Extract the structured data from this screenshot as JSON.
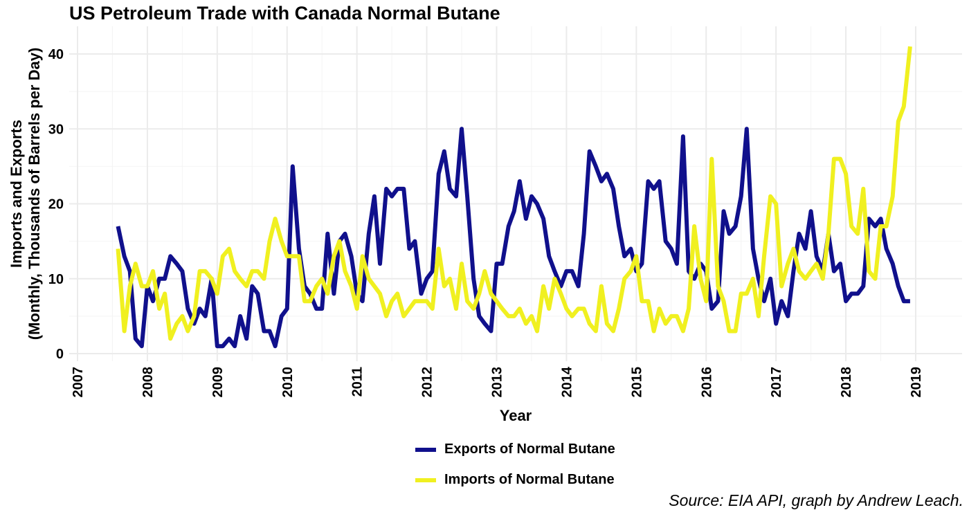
{
  "chart_data": {
    "type": "line",
    "title": "US Petroleum Trade with Canada Normal Butane",
    "xlabel": "Year",
    "ylabel_line1": "Imports and Exports",
    "ylabel_line2": "(Monthly, Thousands of Barrels per Day)",
    "xlim": [
      2007,
      2019.4
    ],
    "ylim": [
      0,
      42
    ],
    "x_ticks": [
      "2007",
      "2008",
      "2009",
      "2010",
      "2011",
      "2012",
      "2013",
      "2014",
      "2015",
      "2016",
      "2017",
      "2018",
      "2019"
    ],
    "y_ticks": [
      "0",
      "10",
      "20",
      "30",
      "40"
    ],
    "y_tick_values": [
      0,
      10,
      20,
      30,
      40
    ],
    "grid": true,
    "legend_position": "bottom",
    "series": [
      {
        "name": "Exports of Normal Butane",
        "color": "#10108c",
        "points": [
          [
            2007.58,
            17
          ],
          [
            2007.67,
            13
          ],
          [
            2007.75,
            11
          ],
          [
            2007.83,
            2
          ],
          [
            2007.92,
            1
          ],
          [
            2008.0,
            9
          ],
          [
            2008.08,
            7
          ],
          [
            2008.17,
            10
          ],
          [
            2008.25,
            10
          ],
          [
            2008.33,
            13
          ],
          [
            2008.42,
            12
          ],
          [
            2008.5,
            11
          ],
          [
            2008.58,
            6
          ],
          [
            2008.67,
            4
          ],
          [
            2008.75,
            6
          ],
          [
            2008.83,
            5
          ],
          [
            2008.92,
            10
          ],
          [
            2009.0,
            1
          ],
          [
            2009.08,
            1
          ],
          [
            2009.17,
            2
          ],
          [
            2009.25,
            1
          ],
          [
            2009.33,
            5
          ],
          [
            2009.42,
            2
          ],
          [
            2009.5,
            9
          ],
          [
            2009.58,
            8
          ],
          [
            2009.67,
            3
          ],
          [
            2009.75,
            3
          ],
          [
            2009.83,
            1
          ],
          [
            2009.92,
            5
          ],
          [
            2010.0,
            6
          ],
          [
            2010.08,
            25
          ],
          [
            2010.17,
            14
          ],
          [
            2010.25,
            9
          ],
          [
            2010.33,
            8
          ],
          [
            2010.42,
            6
          ],
          [
            2010.5,
            6
          ],
          [
            2010.58,
            16
          ],
          [
            2010.67,
            8
          ],
          [
            2010.75,
            15
          ],
          [
            2010.83,
            16
          ],
          [
            2010.92,
            13
          ],
          [
            2011.0,
            8
          ],
          [
            2011.08,
            7
          ],
          [
            2011.17,
            16
          ],
          [
            2011.25,
            21
          ],
          [
            2011.33,
            12
          ],
          [
            2011.42,
            22
          ],
          [
            2011.5,
            21
          ],
          [
            2011.58,
            22
          ],
          [
            2011.67,
            22
          ],
          [
            2011.75,
            14
          ],
          [
            2011.83,
            15
          ],
          [
            2011.92,
            8
          ],
          [
            2012.0,
            10
          ],
          [
            2012.08,
            11
          ],
          [
            2012.17,
            24
          ],
          [
            2012.25,
            27
          ],
          [
            2012.33,
            22
          ],
          [
            2012.42,
            21
          ],
          [
            2012.5,
            30
          ],
          [
            2012.58,
            21
          ],
          [
            2012.67,
            10
          ],
          [
            2012.75,
            5
          ],
          [
            2012.83,
            4
          ],
          [
            2012.92,
            3
          ],
          [
            2013.0,
            12
          ],
          [
            2013.08,
            12
          ],
          [
            2013.17,
            17
          ],
          [
            2013.25,
            19
          ],
          [
            2013.33,
            23
          ],
          [
            2013.42,
            18
          ],
          [
            2013.5,
            21
          ],
          [
            2013.58,
            20
          ],
          [
            2013.67,
            18
          ],
          [
            2013.75,
            13
          ],
          [
            2013.83,
            11
          ],
          [
            2013.92,
            9
          ],
          [
            2014.0,
            11
          ],
          [
            2014.08,
            11
          ],
          [
            2014.17,
            9
          ],
          [
            2014.25,
            16
          ],
          [
            2014.33,
            27
          ],
          [
            2014.42,
            25
          ],
          [
            2014.5,
            23
          ],
          [
            2014.58,
            24
          ],
          [
            2014.67,
            22
          ],
          [
            2014.75,
            17
          ],
          [
            2014.83,
            13
          ],
          [
            2014.92,
            14
          ],
          [
            2015.0,
            11
          ],
          [
            2015.08,
            12
          ],
          [
            2015.17,
            23
          ],
          [
            2015.25,
            22
          ],
          [
            2015.33,
            23
          ],
          [
            2015.42,
            15
          ],
          [
            2015.5,
            14
          ],
          [
            2015.58,
            12
          ],
          [
            2015.67,
            29
          ],
          [
            2015.75,
            11
          ],
          [
            2015.83,
            10
          ],
          [
            2015.92,
            12
          ],
          [
            2016.0,
            11
          ],
          [
            2016.08,
            6
          ],
          [
            2016.17,
            7
          ],
          [
            2016.25,
            19
          ],
          [
            2016.33,
            16
          ],
          [
            2016.42,
            17
          ],
          [
            2016.5,
            21
          ],
          [
            2016.58,
            30
          ],
          [
            2016.67,
            14
          ],
          [
            2016.75,
            10
          ],
          [
            2016.83,
            7
          ],
          [
            2016.92,
            10
          ],
          [
            2017.0,
            4
          ],
          [
            2017.08,
            7
          ],
          [
            2017.17,
            5
          ],
          [
            2017.25,
            11
          ],
          [
            2017.33,
            16
          ],
          [
            2017.42,
            14
          ],
          [
            2017.5,
            19
          ],
          [
            2017.58,
            13
          ],
          [
            2017.67,
            11
          ],
          [
            2017.75,
            16
          ],
          [
            2017.83,
            11
          ],
          [
            2017.92,
            12
          ],
          [
            2018.0,
            7
          ],
          [
            2018.08,
            8
          ],
          [
            2018.17,
            8
          ],
          [
            2018.25,
            9
          ],
          [
            2018.33,
            18
          ],
          [
            2018.42,
            17
          ],
          [
            2018.5,
            18
          ],
          [
            2018.58,
            14
          ],
          [
            2018.67,
            12
          ],
          [
            2018.75,
            9
          ],
          [
            2018.83,
            7
          ],
          [
            2018.92,
            7
          ]
        ]
      },
      {
        "name": "Imports of Normal Butane",
        "color": "#f0f020",
        "points": [
          [
            2007.58,
            14
          ],
          [
            2007.67,
            3
          ],
          [
            2007.75,
            9
          ],
          [
            2007.83,
            12
          ],
          [
            2007.92,
            9
          ],
          [
            2008.0,
            9
          ],
          [
            2008.08,
            11
          ],
          [
            2008.17,
            6
          ],
          [
            2008.25,
            8
          ],
          [
            2008.33,
            2
          ],
          [
            2008.42,
            4
          ],
          [
            2008.5,
            5
          ],
          [
            2008.58,
            3
          ],
          [
            2008.67,
            5
          ],
          [
            2008.75,
            11
          ],
          [
            2008.83,
            11
          ],
          [
            2008.92,
            10
          ],
          [
            2009.0,
            8
          ],
          [
            2009.08,
            13
          ],
          [
            2009.17,
            14
          ],
          [
            2009.25,
            11
          ],
          [
            2009.33,
            10
          ],
          [
            2009.42,
            9
          ],
          [
            2009.5,
            11
          ],
          [
            2009.58,
            11
          ],
          [
            2009.67,
            10
          ],
          [
            2009.75,
            15
          ],
          [
            2009.83,
            18
          ],
          [
            2009.92,
            15
          ],
          [
            2010.0,
            13
          ],
          [
            2010.08,
            13
          ],
          [
            2010.17,
            13
          ],
          [
            2010.25,
            7
          ],
          [
            2010.33,
            7
          ],
          [
            2010.42,
            9
          ],
          [
            2010.5,
            10
          ],
          [
            2010.58,
            8
          ],
          [
            2010.67,
            13
          ],
          [
            2010.75,
            15
          ],
          [
            2010.83,
            11
          ],
          [
            2010.92,
            9
          ],
          [
            2011.0,
            6
          ],
          [
            2011.08,
            13
          ],
          [
            2011.17,
            10
          ],
          [
            2011.25,
            9
          ],
          [
            2011.33,
            8
          ],
          [
            2011.42,
            5
          ],
          [
            2011.5,
            7
          ],
          [
            2011.58,
            8
          ],
          [
            2011.67,
            5
          ],
          [
            2011.75,
            6
          ],
          [
            2011.83,
            7
          ],
          [
            2011.92,
            7
          ],
          [
            2012.0,
            7
          ],
          [
            2012.08,
            6
          ],
          [
            2012.17,
            14
          ],
          [
            2012.25,
            9
          ],
          [
            2012.33,
            10
          ],
          [
            2012.42,
            6
          ],
          [
            2012.5,
            12
          ],
          [
            2012.58,
            7
          ],
          [
            2012.67,
            6
          ],
          [
            2012.75,
            8
          ],
          [
            2012.83,
            11
          ],
          [
            2012.92,
            8
          ],
          [
            2013.0,
            7
          ],
          [
            2013.08,
            6
          ],
          [
            2013.17,
            5
          ],
          [
            2013.25,
            5
          ],
          [
            2013.33,
            6
          ],
          [
            2013.42,
            4
          ],
          [
            2013.5,
            5
          ],
          [
            2013.58,
            3
          ],
          [
            2013.67,
            9
          ],
          [
            2013.75,
            6
          ],
          [
            2013.83,
            10
          ],
          [
            2013.92,
            8
          ],
          [
            2014.0,
            6
          ],
          [
            2014.08,
            5
          ],
          [
            2014.17,
            6
          ],
          [
            2014.25,
            6
          ],
          [
            2014.33,
            4
          ],
          [
            2014.42,
            3
          ],
          [
            2014.5,
            9
          ],
          [
            2014.58,
            4
          ],
          [
            2014.67,
            3
          ],
          [
            2014.75,
            6
          ],
          [
            2014.83,
            10
          ],
          [
            2014.92,
            11
          ],
          [
            2015.0,
            13
          ],
          [
            2015.08,
            7
          ],
          [
            2015.17,
            7
          ],
          [
            2015.25,
            3
          ],
          [
            2015.33,
            6
          ],
          [
            2015.42,
            4
          ],
          [
            2015.5,
            5
          ],
          [
            2015.58,
            5
          ],
          [
            2015.67,
            3
          ],
          [
            2015.75,
            6
          ],
          [
            2015.83,
            17
          ],
          [
            2015.92,
            10
          ],
          [
            2016.0,
            7
          ],
          [
            2016.08,
            26
          ],
          [
            2016.17,
            9
          ],
          [
            2016.25,
            7
          ],
          [
            2016.33,
            3
          ],
          [
            2016.42,
            3
          ],
          [
            2016.5,
            8
          ],
          [
            2016.58,
            8
          ],
          [
            2016.67,
            10
          ],
          [
            2016.75,
            5
          ],
          [
            2016.83,
            13
          ],
          [
            2016.92,
            21
          ],
          [
            2017.0,
            20
          ],
          [
            2017.08,
            9
          ],
          [
            2017.17,
            12
          ],
          [
            2017.25,
            14
          ],
          [
            2017.33,
            11
          ],
          [
            2017.42,
            10
          ],
          [
            2017.5,
            11
          ],
          [
            2017.58,
            12
          ],
          [
            2017.67,
            10
          ],
          [
            2017.75,
            16
          ],
          [
            2017.83,
            26
          ],
          [
            2017.92,
            26
          ],
          [
            2018.0,
            24
          ],
          [
            2018.08,
            17
          ],
          [
            2018.17,
            16
          ],
          [
            2018.25,
            22
          ],
          [
            2018.33,
            11
          ],
          [
            2018.42,
            10
          ],
          [
            2018.5,
            17
          ],
          [
            2018.58,
            17
          ],
          [
            2018.67,
            21
          ],
          [
            2018.75,
            31
          ],
          [
            2018.83,
            33
          ],
          [
            2018.92,
            41
          ]
        ]
      }
    ],
    "source": "Source: EIA API, graph by Andrew Leach."
  }
}
